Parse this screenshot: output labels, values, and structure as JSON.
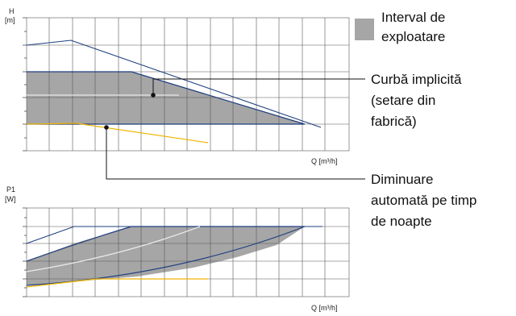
{
  "top_chart": {
    "y_axis_label": "H",
    "y_axis_unit": "[m]",
    "x_axis_label": "Q [m³/h]"
  },
  "bottom_chart": {
    "y_axis_label": "P1",
    "y_axis_unit": "[W]",
    "x_axis_label": "Q [m³/h]"
  },
  "legend": {
    "swatch_color": "#a6a6a6",
    "line1": "Interval de",
    "line2": "exploatare"
  },
  "callout_default": {
    "line1": "Curbă implicită",
    "line2": "(setare din",
    "line3": "fabrică)"
  },
  "callout_night": {
    "line1": "Diminuare",
    "line2": "automată pe timp",
    "line3": "de noapte"
  },
  "colors": {
    "curve_blue": "#1f3f7f",
    "night_yellow": "#f0b400",
    "default_white": "#e8e8e8",
    "grid": "#444444"
  }
}
